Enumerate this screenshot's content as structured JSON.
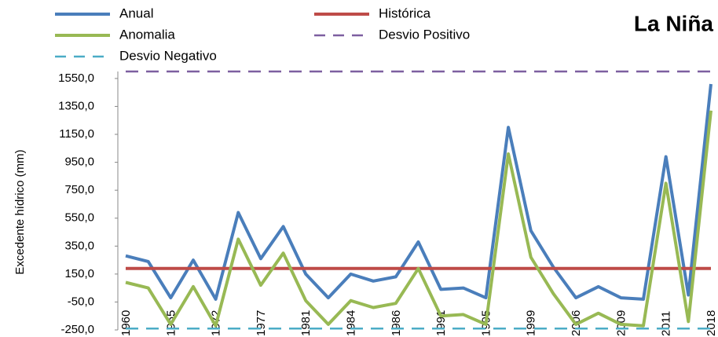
{
  "chart_data": {
    "type": "line",
    "title": "La Niña",
    "y_label": "Excedente hídrico (mm)",
    "categories": [
      "1960",
      null,
      "1965",
      null,
      "1972",
      null,
      "1977",
      null,
      "1981",
      null,
      "1984",
      null,
      "1986",
      null,
      "1991",
      null,
      "1995",
      null,
      "1999",
      null,
      "2006",
      null,
      "2009",
      null,
      "2011",
      null,
      "2018"
    ],
    "ylim": [
      -250,
      1600
    ],
    "yticks": [
      {
        "value": -250,
        "label": "-250,0"
      },
      {
        "value": -50,
        "label": "-50,0"
      },
      {
        "value": 150,
        "label": "150,0"
      },
      {
        "value": 350,
        "label": "350,0"
      },
      {
        "value": 550,
        "label": "550,0"
      },
      {
        "value": 750,
        "label": "750,0"
      },
      {
        "value": 950,
        "label": "950,0"
      },
      {
        "value": 1150,
        "label": "1150,0"
      },
      {
        "value": 1350,
        "label": "1350,0"
      },
      {
        "value": 1550,
        "label": "1550,0"
      }
    ],
    "series": [
      {
        "name": "Anual",
        "color": "#4a7ebb",
        "dash": false,
        "values": [
          280,
          240,
          -20,
          250,
          -30,
          590,
          260,
          490,
          150,
          -20,
          150,
          100,
          130,
          380,
          40,
          50,
          -20,
          1200,
          460,
          200,
          -20,
          60,
          -20,
          -30,
          990,
          0,
          1510
        ]
      },
      {
        "name": "Histórica",
        "color": "#be4b48",
        "dash": false,
        "values": [
          190,
          190,
          190,
          190,
          190,
          190,
          190,
          190,
          190,
          190,
          190,
          190,
          190,
          190,
          190,
          190,
          190,
          190,
          190,
          190,
          190,
          190,
          190,
          190,
          190,
          190,
          190
        ]
      },
      {
        "name": "Anomalia",
        "color": "#98b954",
        "dash": false,
        "values": [
          90,
          50,
          -210,
          60,
          -220,
          400,
          70,
          300,
          -40,
          -210,
          -40,
          -90,
          -60,
          190,
          -150,
          -140,
          -210,
          1010,
          270,
          10,
          -210,
          -130,
          -210,
          -220,
          800,
          -190,
          1320
        ]
      },
      {
        "name": "Desvio Positivo",
        "color": "#7d5fa0",
        "dash": true,
        "values": [
          1600,
          1600,
          1600,
          1600,
          1600,
          1600,
          1600,
          1600,
          1600,
          1600,
          1600,
          1600,
          1600,
          1600,
          1600,
          1600,
          1600,
          1600,
          1600,
          1600,
          1600,
          1600,
          1600,
          1600,
          1600,
          1600,
          1600
        ]
      },
      {
        "name": "Desvio Negativo",
        "color": "#4bacc6",
        "dash": true,
        "values": [
          -240,
          -240,
          -240,
          -240,
          -240,
          -240,
          -240,
          -240,
          -240,
          -240,
          -240,
          -240,
          -240,
          -240,
          -240,
          -240,
          -240,
          -240,
          -240,
          -240,
          -240,
          -240,
          -240,
          -240,
          -240,
          -240,
          -240
        ]
      }
    ]
  }
}
